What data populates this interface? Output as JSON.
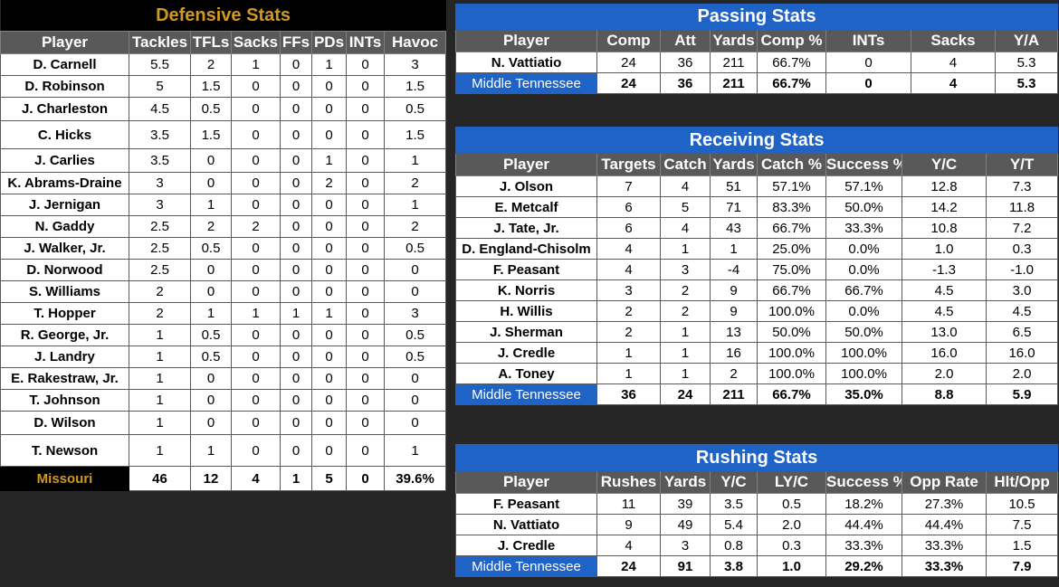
{
  "defense": {
    "title": "Defensive Stats",
    "headers": [
      "Player",
      "Tackles",
      "TFLs",
      "Sacks",
      "FFs",
      "PDs",
      "INTs",
      "Havoc"
    ],
    "rows": [
      [
        "D. Carnell",
        "5.5",
        "2",
        "1",
        "0",
        "1",
        "0",
        "3"
      ],
      [
        "D. Robinson",
        "5",
        "1.5",
        "0",
        "0",
        "0",
        "0",
        "1.5"
      ],
      [
        "J. Charleston",
        "4.5",
        "0.5",
        "0",
        "0",
        "0",
        "0",
        "0.5"
      ],
      [
        "C. Hicks",
        "3.5",
        "1.5",
        "0",
        "0",
        "0",
        "0",
        "1.5"
      ],
      [
        "J. Carlies",
        "3.5",
        "0",
        "0",
        "0",
        "1",
        "0",
        "1"
      ],
      [
        "K. Abrams-Draine",
        "3",
        "0",
        "0",
        "0",
        "2",
        "0",
        "2"
      ],
      [
        "J. Jernigan",
        "3",
        "1",
        "0",
        "0",
        "0",
        "0",
        "1"
      ],
      [
        "N. Gaddy",
        "2.5",
        "2",
        "2",
        "0",
        "0",
        "0",
        "2"
      ],
      [
        "J. Walker, Jr.",
        "2.5",
        "0.5",
        "0",
        "0",
        "0",
        "0",
        "0.5"
      ],
      [
        "D. Norwood",
        "2.5",
        "0",
        "0",
        "0",
        "0",
        "0",
        "0"
      ],
      [
        "S. Williams",
        "2",
        "0",
        "0",
        "0",
        "0",
        "0",
        "0"
      ],
      [
        "T. Hopper",
        "2",
        "1",
        "1",
        "1",
        "1",
        "0",
        "3"
      ],
      [
        "R. George, Jr.",
        "1",
        "0.5",
        "0",
        "0",
        "0",
        "0",
        "0.5"
      ],
      [
        "J. Landry",
        "1",
        "0.5",
        "0",
        "0",
        "0",
        "0",
        "0.5"
      ],
      [
        "E. Rakestraw, Jr.",
        "1",
        "0",
        "0",
        "0",
        "0",
        "0",
        "0"
      ],
      [
        "T. Johnson",
        "1",
        "0",
        "0",
        "0",
        "0",
        "0",
        "0"
      ],
      [
        "D. Wilson",
        "1",
        "0",
        "0",
        "0",
        "0",
        "0",
        "0"
      ],
      [
        "T. Newson",
        "1",
        "1",
        "0",
        "0",
        "0",
        "0",
        "1"
      ]
    ],
    "total": [
      "Missouri",
      "46",
      "12",
      "4",
      "1",
      "5",
      "0",
      "39.6%"
    ]
  },
  "passing": {
    "title": "Passing Stats",
    "headers": [
      "Player",
      "Comp",
      "Att",
      "Yards",
      "Comp %",
      "INTs",
      "Sacks",
      "Y/A"
    ],
    "rows": [
      [
        "N. Vattiatio",
        "24",
        "36",
        "211",
        "66.7%",
        "0",
        "4",
        "5.3"
      ]
    ],
    "total": [
      "Middle Tennessee",
      "24",
      "36",
      "211",
      "66.7%",
      "0",
      "4",
      "5.3"
    ]
  },
  "receiving": {
    "title": "Receiving Stats",
    "headers": [
      "Player",
      "Targets",
      "Catch",
      "Yards",
      "Catch %",
      "Success %",
      "Y/C",
      "Y/T"
    ],
    "rows": [
      [
        "J. Olson",
        "7",
        "4",
        "51",
        "57.1%",
        "57.1%",
        "12.8",
        "7.3"
      ],
      [
        "E. Metcalf",
        "6",
        "5",
        "71",
        "83.3%",
        "50.0%",
        "14.2",
        "11.8"
      ],
      [
        "J. Tate, Jr.",
        "6",
        "4",
        "43",
        "66.7%",
        "33.3%",
        "10.8",
        "7.2"
      ],
      [
        "D. England-Chisolm",
        "4",
        "1",
        "1",
        "25.0%",
        "0.0%",
        "1.0",
        "0.3"
      ],
      [
        "F. Peasant",
        "4",
        "3",
        "-4",
        "75.0%",
        "0.0%",
        "-1.3",
        "-1.0"
      ],
      [
        "K. Norris",
        "3",
        "2",
        "9",
        "66.7%",
        "66.7%",
        "4.5",
        "3.0"
      ],
      [
        "H. Willis",
        "2",
        "2",
        "9",
        "100.0%",
        "0.0%",
        "4.5",
        "4.5"
      ],
      [
        "J. Sherman",
        "2",
        "1",
        "13",
        "50.0%",
        "50.0%",
        "13.0",
        "6.5"
      ],
      [
        "J. Credle",
        "1",
        "1",
        "16",
        "100.0%",
        "100.0%",
        "16.0",
        "16.0"
      ],
      [
        "A. Toney",
        "1",
        "1",
        "2",
        "100.0%",
        "100.0%",
        "2.0",
        "2.0"
      ]
    ],
    "total": [
      "Middle Tennessee",
      "36",
      "24",
      "211",
      "66.7%",
      "35.0%",
      "8.8",
      "5.9"
    ]
  },
  "rushing": {
    "title": "Rushing Stats",
    "headers": [
      "Player",
      "Rushes",
      "Yards",
      "Y/C",
      "LY/C",
      "Success %",
      "Opp Rate",
      "Hlt/Opp"
    ],
    "rows": [
      [
        "F. Peasant",
        "11",
        "39",
        "3.5",
        "0.5",
        "18.2%",
        "27.3%",
        "10.5"
      ],
      [
        "N. Vattiato",
        "9",
        "49",
        "5.4",
        "2.0",
        "44.4%",
        "44.4%",
        "7.5"
      ],
      [
        "J. Credle",
        "4",
        "3",
        "0.8",
        "0.3",
        "33.3%",
        "33.3%",
        "1.5"
      ]
    ],
    "total": [
      "Middle Tennessee",
      "24",
      "91",
      "3.8",
      "1.0",
      "29.2%",
      "33.3%",
      "7.9"
    ]
  }
}
